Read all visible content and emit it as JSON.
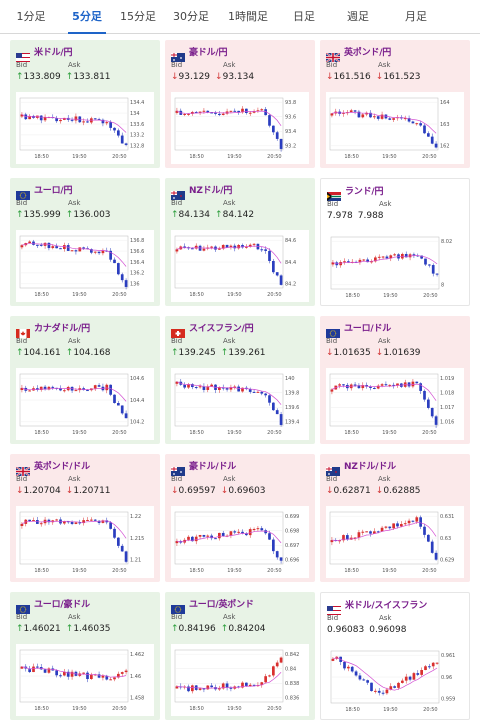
{
  "tabs": [
    {
      "label": "1分足",
      "active": false
    },
    {
      "label": "5分足",
      "active": true
    },
    {
      "label": "15分足",
      "active": false
    },
    {
      "label": "30分足",
      "active": false
    },
    {
      "label": "1時間足",
      "active": false
    },
    {
      "label": "日足",
      "active": false
    },
    {
      "label": "週足",
      "active": false
    },
    {
      "label": "月足",
      "active": false
    }
  ],
  "labels": {
    "bid": "Bid",
    "ask": "Ask"
  },
  "colors": {
    "up_bg": "#e8f3e6",
    "down_bg": "#fbe9ea",
    "up_arrow": "#2a9d3a",
    "down_arrow": "#d33a3a",
    "pair_text": "#7a1f8c",
    "active_tab": "#1e64c8",
    "bull_candle": "#d9302f",
    "bear_candle": "#2a3dbf",
    "ma_line": "#d24fd2"
  },
  "cards": [
    {
      "pair": "米ドル/円",
      "flag": "us",
      "trend": "up",
      "bid": "133.809",
      "ask": "133.811",
      "yticks": [
        "134.4",
        "134",
        "133.6",
        "133.2",
        "132.8"
      ],
      "xticks": [
        "18:50",
        "19:50",
        "20:50"
      ]
    },
    {
      "pair": "豪ドル/円",
      "flag": "au",
      "trend": "down",
      "bid": "93.129",
      "ask": "93.134",
      "yticks": [
        "93.8",
        "93.6",
        "93.4",
        "93.2"
      ],
      "xticks": [
        "18:50",
        "19:50",
        "20:50"
      ]
    },
    {
      "pair": "英ポンド/円",
      "flag": "gb",
      "trend": "down",
      "bid": "161.516",
      "ask": "161.523",
      "yticks": [
        "164",
        "163",
        "162"
      ],
      "xticks": [
        "18:50",
        "19:50",
        "20:50"
      ]
    },
    {
      "pair": "ユーロ/円",
      "flag": "eu",
      "trend": "up",
      "bid": "135.999",
      "ask": "136.003",
      "yticks": [
        "136.8",
        "136.6",
        "136.4",
        "136.2",
        "136"
      ],
      "xticks": [
        "18:50",
        "19:50",
        "20:50"
      ]
    },
    {
      "pair": "NZドル/円",
      "flag": "nz",
      "trend": "up",
      "bid": "84.134",
      "ask": "84.142",
      "yticks": [
        "84.6",
        "84.4",
        "84.2"
      ],
      "xticks": [
        "18:50",
        "19:50",
        "20:50"
      ]
    },
    {
      "pair": "ランド/円",
      "flag": "za",
      "trend": "flat",
      "bid": "7.978",
      "ask": "7.988",
      "yticks": [
        "8.02",
        "8"
      ],
      "xticks": [
        "18:50",
        "19:50",
        "20:50"
      ]
    },
    {
      "pair": "カナダドル/円",
      "flag": "ca",
      "trend": "up",
      "bid": "104.161",
      "ask": "104.168",
      "yticks": [
        "104.6",
        "104.4",
        "104.2"
      ],
      "xticks": [
        "18:50",
        "19:50",
        "20:50"
      ]
    },
    {
      "pair": "スイスフラン/円",
      "flag": "ch",
      "trend": "up",
      "bid": "139.245",
      "ask": "139.261",
      "yticks": [
        "140",
        "139.8",
        "139.6",
        "139.4"
      ],
      "xticks": [
        "18:50",
        "19:50",
        "20:50"
      ]
    },
    {
      "pair": "ユーロ/ドル",
      "flag": "eu",
      "trend": "down",
      "bid": "1.01635",
      "ask": "1.01639",
      "yticks": [
        "1.019",
        "1.018",
        "1.017",
        "1.016"
      ],
      "xticks": [
        "18:50",
        "19:50",
        "20:50"
      ]
    },
    {
      "pair": "英ポンド/ドル",
      "flag": "gb",
      "trend": "down",
      "bid": "1.20704",
      "ask": "1.20711",
      "yticks": [
        "1.22",
        "1.215",
        "1.21"
      ],
      "xticks": [
        "18:50",
        "19:50",
        "20:50"
      ]
    },
    {
      "pair": "豪ドル/ドル",
      "flag": "au",
      "trend": "down",
      "bid": "0.69597",
      "ask": "0.69603",
      "yticks": [
        "0.699",
        "0.698",
        "0.697",
        "0.696"
      ],
      "xticks": [
        "18:50",
        "19:50",
        "20:50"
      ]
    },
    {
      "pair": "NZドル/ドル",
      "flag": "nz",
      "trend": "down",
      "bid": "0.62871",
      "ask": "0.62885",
      "yticks": [
        "0.631",
        "0.63",
        "0.629"
      ],
      "xticks": [
        "18:50",
        "19:50",
        "20:50"
      ]
    },
    {
      "pair": "ユーロ/豪ドル",
      "flag": "eu",
      "trend": "up",
      "bid": "1.46021",
      "ask": "1.46035",
      "yticks": [
        "1.462",
        "1.46",
        "1.458"
      ],
      "xticks": [
        "18:50",
        "19:50",
        "20:50"
      ]
    },
    {
      "pair": "ユーロ/英ポンド",
      "flag": "eu",
      "trend": "up",
      "bid": "0.84196",
      "ask": "0.84204",
      "yticks": [
        "0.842",
        "0.84",
        "0.838",
        "0.836"
      ],
      "xticks": [
        "18:50",
        "19:50",
        "20:50"
      ]
    },
    {
      "pair": "米ドル/スイスフラン",
      "flag": "us",
      "trend": "flat",
      "bid": "0.96083",
      "ask": "0.96098",
      "yticks": [
        "0.961",
        "0.96",
        "0.959"
      ],
      "xticks": [
        "18:50",
        "19:50",
        "20:50"
      ]
    }
  ]
}
